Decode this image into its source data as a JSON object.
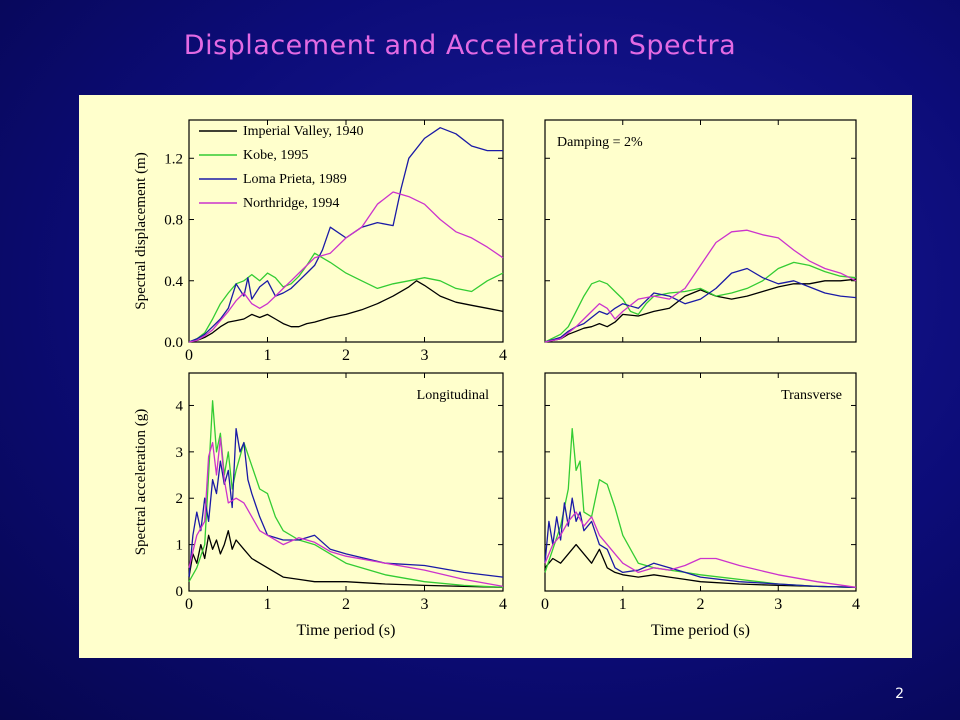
{
  "slide": {
    "title": "Displacement and Acceleration Spectra",
    "page_number": "2"
  },
  "colors": {
    "Imperial Valley, 1940": "#000000",
    "Kobe, 1995": "#33cc33",
    "Loma Prieta, 1989": "#1a1aa6",
    "Northridge, 1994": "#cc33cc",
    "frame": "#000000",
    "plot_background": "#ffffcc"
  },
  "chart_data": [
    {
      "type": "line",
      "panel": "top-left",
      "ylabel": "Spectral displacement (m)",
      "xlabel": "",
      "xlim": [
        0,
        4
      ],
      "ylim": [
        0,
        1.45
      ],
      "xticks": [
        "0",
        "1",
        "2",
        "3",
        "4"
      ],
      "yticks": [
        "0.0",
        "0.4",
        "0.8",
        "1.2"
      ],
      "legend": [
        "Imperial Valley, 1940",
        "Kobe, 1995",
        "Loma Prieta, 1989",
        "Northridge, 1994"
      ],
      "legend_position": "top-left",
      "annotation": "",
      "series": [
        {
          "name": "Imperial Valley, 1940",
          "x": [
            0,
            0.1,
            0.2,
            0.3,
            0.4,
            0.5,
            0.6,
            0.7,
            0.8,
            0.9,
            1.0,
            1.1,
            1.2,
            1.3,
            1.4,
            1.5,
            1.6,
            1.8,
            2.0,
            2.2,
            2.4,
            2.6,
            2.8,
            2.9,
            3.0,
            3.2,
            3.4,
            3.6,
            3.8,
            4.0
          ],
          "y": [
            0,
            0.01,
            0.03,
            0.06,
            0.1,
            0.13,
            0.14,
            0.15,
            0.18,
            0.16,
            0.18,
            0.15,
            0.12,
            0.1,
            0.1,
            0.12,
            0.13,
            0.16,
            0.18,
            0.21,
            0.25,
            0.3,
            0.36,
            0.4,
            0.37,
            0.3,
            0.26,
            0.24,
            0.22,
            0.2
          ]
        },
        {
          "name": "Kobe, 1995",
          "x": [
            0,
            0.1,
            0.2,
            0.3,
            0.4,
            0.5,
            0.6,
            0.7,
            0.8,
            0.9,
            1.0,
            1.1,
            1.2,
            1.3,
            1.4,
            1.5,
            1.6,
            1.8,
            2.0,
            2.2,
            2.4,
            2.6,
            2.8,
            3.0,
            3.2,
            3.4,
            3.6,
            3.8,
            4.0
          ],
          "y": [
            0,
            0.02,
            0.06,
            0.15,
            0.25,
            0.32,
            0.38,
            0.4,
            0.44,
            0.4,
            0.45,
            0.42,
            0.36,
            0.38,
            0.43,
            0.5,
            0.58,
            0.52,
            0.45,
            0.4,
            0.35,
            0.38,
            0.4,
            0.42,
            0.4,
            0.35,
            0.33,
            0.4,
            0.45
          ]
        },
        {
          "name": "Loma Prieta, 1989",
          "x": [
            0,
            0.1,
            0.2,
            0.3,
            0.4,
            0.5,
            0.6,
            0.7,
            0.75,
            0.8,
            0.9,
            1.0,
            1.1,
            1.2,
            1.3,
            1.4,
            1.5,
            1.6,
            1.7,
            1.8,
            2.0,
            2.2,
            2.4,
            2.6,
            2.7,
            2.8,
            3.0,
            3.2,
            3.4,
            3.6,
            3.8,
            4.0
          ],
          "y": [
            0,
            0.02,
            0.05,
            0.1,
            0.15,
            0.22,
            0.38,
            0.3,
            0.42,
            0.28,
            0.36,
            0.4,
            0.3,
            0.32,
            0.35,
            0.4,
            0.45,
            0.5,
            0.6,
            0.75,
            0.68,
            0.75,
            0.78,
            0.76,
            1.0,
            1.2,
            1.33,
            1.4,
            1.36,
            1.28,
            1.25,
            1.25
          ]
        },
        {
          "name": "Northridge, 1994",
          "x": [
            0,
            0.1,
            0.2,
            0.3,
            0.4,
            0.5,
            0.6,
            0.7,
            0.8,
            0.9,
            1.0,
            1.1,
            1.2,
            1.3,
            1.4,
            1.5,
            1.6,
            1.8,
            2.0,
            2.2,
            2.4,
            2.6,
            2.8,
            3.0,
            3.2,
            3.4,
            3.6,
            3.8,
            4.0
          ],
          "y": [
            0,
            0.01,
            0.04,
            0.08,
            0.14,
            0.2,
            0.27,
            0.32,
            0.25,
            0.22,
            0.25,
            0.3,
            0.35,
            0.4,
            0.45,
            0.5,
            0.55,
            0.58,
            0.68,
            0.75,
            0.9,
            0.98,
            0.95,
            0.9,
            0.8,
            0.72,
            0.68,
            0.62,
            0.55
          ]
        }
      ]
    },
    {
      "type": "line",
      "panel": "top-right",
      "ylabel": "",
      "xlabel": "",
      "xlim": [
        0,
        4
      ],
      "ylim": [
        0,
        1.45
      ],
      "xticks": [],
      "yticks": [],
      "annotation": "Damping = 2%",
      "series": [
        {
          "name": "Imperial Valley, 1940",
          "x": [
            0,
            0.2,
            0.3,
            0.4,
            0.5,
            0.6,
            0.7,
            0.8,
            0.9,
            1.0,
            1.2,
            1.4,
            1.6,
            1.8,
            2.0,
            2.2,
            2.4,
            2.6,
            2.8,
            3.0,
            3.2,
            3.4,
            3.6,
            3.8,
            4.0
          ],
          "y": [
            0,
            0.02,
            0.05,
            0.07,
            0.09,
            0.1,
            0.12,
            0.1,
            0.13,
            0.18,
            0.17,
            0.2,
            0.22,
            0.3,
            0.34,
            0.3,
            0.28,
            0.3,
            0.33,
            0.36,
            0.38,
            0.38,
            0.4,
            0.4,
            0.41
          ]
        },
        {
          "name": "Kobe, 1995",
          "x": [
            0,
            0.2,
            0.3,
            0.4,
            0.5,
            0.6,
            0.7,
            0.8,
            0.9,
            1.0,
            1.1,
            1.2,
            1.3,
            1.4,
            1.6,
            1.8,
            2.0,
            2.2,
            2.4,
            2.6,
            2.8,
            3.0,
            3.2,
            3.4,
            3.6,
            3.8,
            4.0
          ],
          "y": [
            0,
            0.05,
            0.1,
            0.2,
            0.3,
            0.38,
            0.4,
            0.38,
            0.33,
            0.28,
            0.2,
            0.18,
            0.25,
            0.3,
            0.32,
            0.33,
            0.35,
            0.3,
            0.32,
            0.35,
            0.4,
            0.48,
            0.52,
            0.5,
            0.46,
            0.43,
            0.42
          ]
        },
        {
          "name": "Loma Prieta, 1989",
          "x": [
            0,
            0.2,
            0.3,
            0.4,
            0.5,
            0.6,
            0.7,
            0.8,
            0.9,
            1.0,
            1.2,
            1.4,
            1.6,
            1.8,
            2.0,
            2.2,
            2.4,
            2.6,
            2.8,
            3.0,
            3.2,
            3.4,
            3.6,
            3.8,
            4.0
          ],
          "y": [
            0,
            0.03,
            0.07,
            0.1,
            0.12,
            0.16,
            0.2,
            0.18,
            0.22,
            0.25,
            0.22,
            0.32,
            0.3,
            0.25,
            0.28,
            0.35,
            0.45,
            0.48,
            0.42,
            0.38,
            0.4,
            0.36,
            0.32,
            0.3,
            0.29
          ]
        },
        {
          "name": "Northridge, 1994",
          "x": [
            0,
            0.2,
            0.3,
            0.4,
            0.5,
            0.6,
            0.7,
            0.8,
            0.9,
            1.0,
            1.2,
            1.4,
            1.6,
            1.8,
            2.0,
            2.2,
            2.4,
            2.6,
            2.8,
            3.0,
            3.2,
            3.4,
            3.6,
            3.8,
            4.0
          ],
          "y": [
            0,
            0.02,
            0.06,
            0.1,
            0.15,
            0.2,
            0.25,
            0.22,
            0.15,
            0.2,
            0.28,
            0.3,
            0.28,
            0.35,
            0.5,
            0.65,
            0.72,
            0.73,
            0.7,
            0.68,
            0.6,
            0.53,
            0.48,
            0.45,
            0.4
          ]
        }
      ]
    },
    {
      "type": "line",
      "panel": "bottom-left",
      "ylabel": "Spectral acceleration (g)",
      "xlabel": "Time period (s)",
      "xlim": [
        0,
        4
      ],
      "ylim": [
        0,
        4.7
      ],
      "xticks": [
        "0",
        "1",
        "2",
        "3",
        "4"
      ],
      "yticks": [
        "0",
        "1",
        "2",
        "3",
        "4"
      ],
      "annotation": "Longitudinal",
      "series": [
        {
          "name": "Imperial Valley, 1940",
          "x": [
            0,
            0.05,
            0.1,
            0.15,
            0.2,
            0.25,
            0.3,
            0.35,
            0.4,
            0.45,
            0.5,
            0.55,
            0.6,
            0.7,
            0.8,
            0.9,
            1.0,
            1.2,
            1.4,
            1.6,
            2.0,
            2.5,
            3.0,
            3.5,
            4.0
          ],
          "y": [
            0.3,
            0.8,
            0.6,
            1.0,
            0.7,
            1.2,
            0.9,
            1.1,
            0.8,
            1.0,
            1.3,
            0.9,
            1.1,
            0.9,
            0.7,
            0.6,
            0.5,
            0.3,
            0.25,
            0.2,
            0.2,
            0.15,
            0.12,
            0.1,
            0.08
          ]
        },
        {
          "name": "Kobe, 1995",
          "x": [
            0,
            0.1,
            0.2,
            0.25,
            0.3,
            0.35,
            0.4,
            0.45,
            0.5,
            0.55,
            0.6,
            0.7,
            0.8,
            0.9,
            1.0,
            1.1,
            1.2,
            1.4,
            1.6,
            1.8,
            2.0,
            2.5,
            3.0,
            3.5,
            4.0
          ],
          "y": [
            0.2,
            0.5,
            1.0,
            2.5,
            4.1,
            3.0,
            3.4,
            2.5,
            3.0,
            2.2,
            2.6,
            3.2,
            2.7,
            2.2,
            2.1,
            1.6,
            1.3,
            1.1,
            1.0,
            0.8,
            0.6,
            0.35,
            0.2,
            0.12,
            0.08
          ]
        },
        {
          "name": "Loma Prieta, 1989",
          "x": [
            0,
            0.05,
            0.1,
            0.15,
            0.2,
            0.25,
            0.3,
            0.35,
            0.4,
            0.45,
            0.5,
            0.55,
            0.6,
            0.65,
            0.7,
            0.75,
            0.8,
            0.9,
            1.0,
            1.2,
            1.4,
            1.6,
            1.8,
            2.0,
            2.5,
            3.0,
            3.5,
            4.0
          ],
          "y": [
            0.3,
            1.2,
            1.7,
            1.3,
            2.0,
            1.5,
            2.4,
            2.1,
            2.8,
            2.3,
            2.6,
            1.8,
            3.5,
            3.0,
            3.2,
            2.4,
            2.1,
            1.6,
            1.2,
            1.1,
            1.1,
            1.2,
            0.9,
            0.8,
            0.6,
            0.55,
            0.4,
            0.3
          ]
        },
        {
          "name": "Northridge, 1994",
          "x": [
            0,
            0.1,
            0.2,
            0.25,
            0.3,
            0.35,
            0.4,
            0.45,
            0.5,
            0.6,
            0.7,
            0.8,
            0.9,
            1.0,
            1.2,
            1.4,
            1.6,
            1.8,
            2.0,
            2.5,
            3.0,
            3.5,
            4.0
          ],
          "y": [
            0.5,
            1.2,
            1.5,
            2.9,
            3.2,
            2.5,
            3.3,
            2.4,
            1.9,
            2.0,
            1.9,
            1.6,
            1.3,
            1.2,
            1.0,
            1.15,
            1.05,
            0.85,
            0.75,
            0.6,
            0.45,
            0.25,
            0.1
          ]
        }
      ]
    },
    {
      "type": "line",
      "panel": "bottom-right",
      "ylabel": "",
      "xlabel": "Time period (s)",
      "xlim": [
        0,
        4
      ],
      "ylim": [
        0,
        4.7
      ],
      "xticks": [
        "0",
        "1",
        "2",
        "3",
        "4"
      ],
      "yticks": [],
      "annotation": "Transverse",
      "series": [
        {
          "name": "Imperial Valley, 1940",
          "x": [
            0,
            0.1,
            0.2,
            0.3,
            0.4,
            0.5,
            0.6,
            0.7,
            0.8,
            0.9,
            1.0,
            1.2,
            1.4,
            1.6,
            1.8,
            2.0,
            2.5,
            3.0,
            3.5,
            4.0
          ],
          "y": [
            0.5,
            0.7,
            0.6,
            0.8,
            1.0,
            0.8,
            0.6,
            0.9,
            0.5,
            0.4,
            0.35,
            0.3,
            0.35,
            0.3,
            0.25,
            0.2,
            0.15,
            0.12,
            0.1,
            0.08
          ]
        },
        {
          "name": "Kobe, 1995",
          "x": [
            0,
            0.1,
            0.2,
            0.3,
            0.35,
            0.4,
            0.45,
            0.5,
            0.6,
            0.7,
            0.8,
            0.9,
            1.0,
            1.2,
            1.4,
            1.6,
            1.8,
            2.0,
            2.5,
            3.0,
            3.5,
            4.0
          ],
          "y": [
            0.4,
            0.9,
            1.4,
            2.2,
            3.5,
            2.6,
            2.8,
            1.7,
            1.6,
            2.4,
            2.3,
            1.8,
            1.2,
            0.6,
            0.5,
            0.45,
            0.4,
            0.35,
            0.25,
            0.15,
            0.1,
            0.08
          ]
        },
        {
          "name": "Loma Prieta, 1989",
          "x": [
            0,
            0.05,
            0.1,
            0.15,
            0.2,
            0.25,
            0.3,
            0.35,
            0.4,
            0.45,
            0.5,
            0.6,
            0.7,
            0.8,
            0.9,
            1.0,
            1.2,
            1.4,
            1.6,
            1.8,
            2.0,
            2.5,
            3.0,
            3.5,
            4.0
          ],
          "y": [
            0.6,
            1.5,
            1.0,
            1.6,
            1.1,
            1.9,
            1.4,
            2.0,
            1.5,
            1.7,
            1.3,
            1.5,
            1.0,
            0.9,
            0.5,
            0.4,
            0.45,
            0.6,
            0.5,
            0.4,
            0.3,
            0.2,
            0.15,
            0.1,
            0.08
          ]
        },
        {
          "name": "Northridge, 1994",
          "x": [
            0,
            0.1,
            0.2,
            0.3,
            0.4,
            0.5,
            0.6,
            0.7,
            0.8,
            0.9,
            1.0,
            1.2,
            1.4,
            1.6,
            1.8,
            2.0,
            2.2,
            2.5,
            3.0,
            3.5,
            4.0
          ],
          "y": [
            0.6,
            1.0,
            1.2,
            1.5,
            1.7,
            1.4,
            1.6,
            1.2,
            1.0,
            0.8,
            0.6,
            0.4,
            0.5,
            0.45,
            0.55,
            0.7,
            0.7,
            0.55,
            0.35,
            0.2,
            0.08
          ]
        }
      ]
    }
  ]
}
